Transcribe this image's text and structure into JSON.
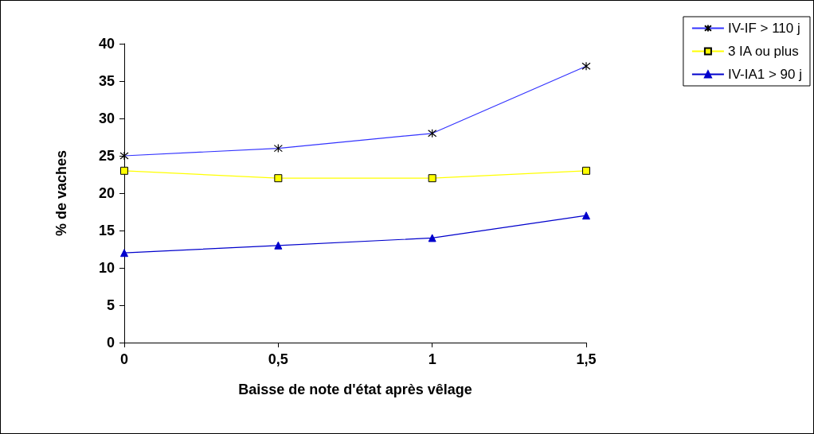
{
  "chart_data": {
    "type": "line",
    "xlabel": "Baisse de note d'état après vêlage",
    "ylabel": "% de vaches",
    "x": [
      0,
      0.5,
      1,
      1.5
    ],
    "xlim": [
      0,
      1.5
    ],
    "xticks": [
      0,
      {
        "value": 0.5,
        "label": "0,5"
      },
      1,
      {
        "value": 1.5,
        "label": "1,5"
      }
    ],
    "ylim": [
      0,
      40
    ],
    "yticks": [
      0,
      5,
      10,
      15,
      20,
      25,
      30,
      35,
      40
    ],
    "grid": false,
    "legend": "top right",
    "line_style": "solid",
    "series": [
      {
        "name": "IV-IF > 110 j",
        "color": "#3333ff",
        "marker": "cross",
        "values": [
          25,
          26,
          28,
          37
        ]
      },
      {
        "name": "3 IA ou plus",
        "color": "#ffff00",
        "marker": "square",
        "values": [
          23,
          22,
          22,
          23
        ]
      },
      {
        "name": "IV-IA1 > 90 j",
        "color": "#0000cc",
        "marker": "triangle",
        "values": [
          12,
          13,
          14,
          17
        ]
      }
    ]
  }
}
